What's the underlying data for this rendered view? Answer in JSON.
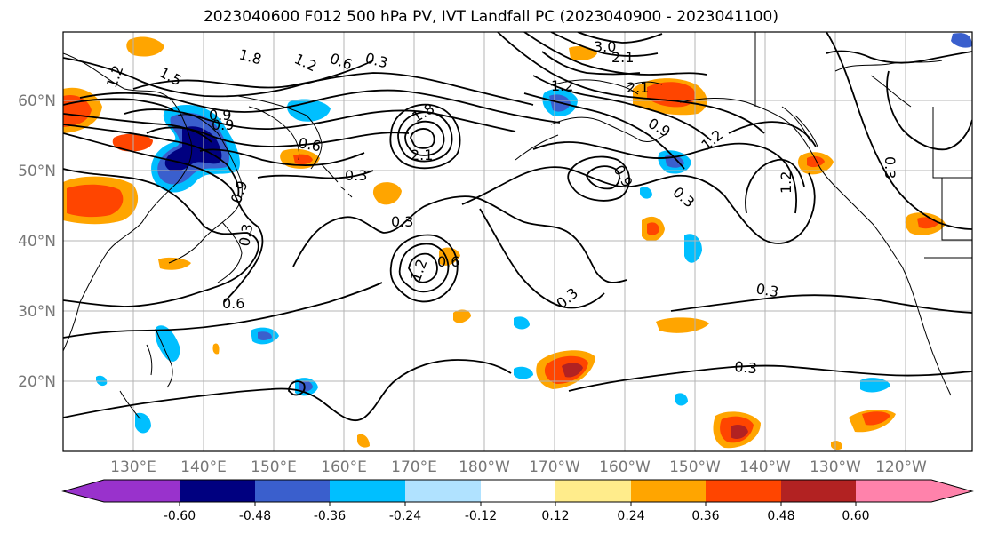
{
  "title": "2023040600 F012 500 hPa PV, IVT Landfall PC (2023040900 - 2023041100)",
  "lat_labels": [
    "60°N",
    "50°N",
    "40°N",
    "30°N",
    "20°N"
  ],
  "lon_labels": [
    "130°E",
    "140°E",
    "150°E",
    "160°E",
    "170°E",
    "180°W",
    "170°W",
    "160°W",
    "150°W",
    "140°W",
    "130°W",
    "120°W"
  ],
  "colorbar": {
    "colors": [
      "#9932cc",
      "#000080",
      "#3a5fcd",
      "#00bfff",
      "#b0e2ff",
      "#ffffff",
      "#ffec8b",
      "#ffa500",
      "#ff4500",
      "#b22222",
      "#ff82ab"
    ],
    "tick_labels": [
      "-0.60",
      "-0.48",
      "-0.36",
      "-0.24",
      "-0.12",
      "0.12",
      "0.24",
      "0.36",
      "0.48",
      "0.60"
    ]
  },
  "contour_labels": [
    "1.8",
    "1.2",
    "0.6",
    "0.3",
    "3.0",
    "2.1",
    "1.5",
    "1.2",
    "0.9",
    "0.6",
    "1.8",
    "2.1",
    "0.3",
    "0.3",
    "0.3",
    "0.9",
    "0.9",
    "0.6",
    "1.2",
    "0.6",
    "0.3",
    "0.3",
    "0.3",
    "1.2",
    "0.9",
    "2.1",
    "0.3",
    "0.9",
    "1.2",
    "1.2",
    "0.3"
  ]
}
